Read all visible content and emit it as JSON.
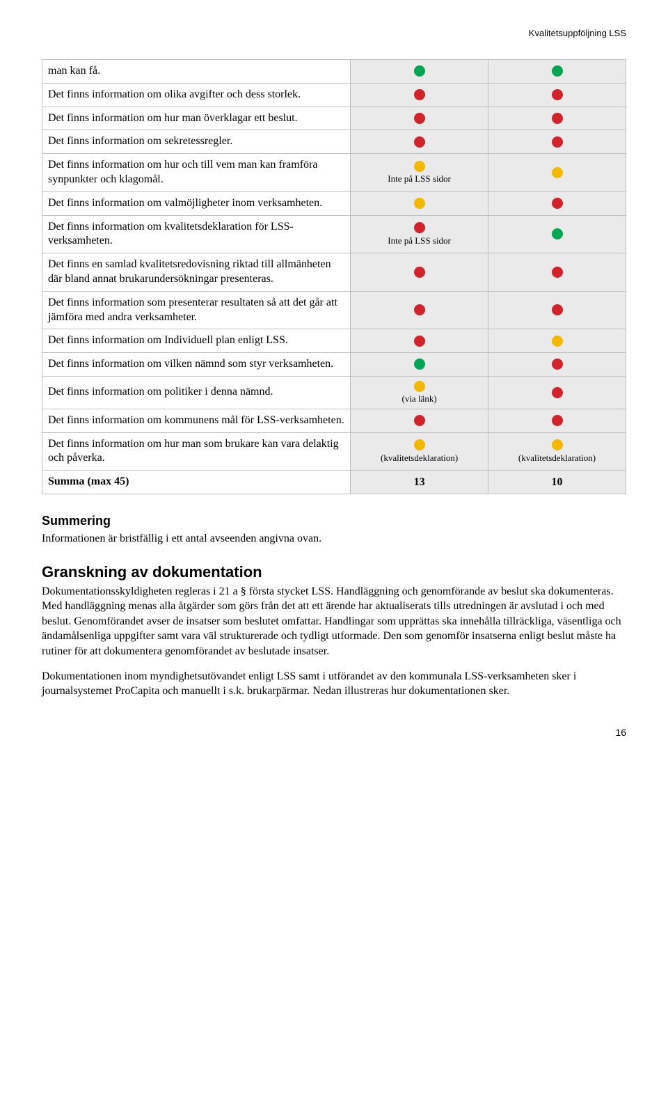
{
  "header": {
    "right": "Kvalitetsuppföljning LSS"
  },
  "colors": {
    "green": "#00a651",
    "red": "#d2232a",
    "yellow": "#f2b900"
  },
  "table": {
    "rows": [
      {
        "label": "man kan få.",
        "c1": {
          "dot": "green"
        },
        "c2": {
          "dot": "green"
        }
      },
      {
        "label": "Det finns information om olika avgifter och dess storlek.",
        "c1": {
          "dot": "red"
        },
        "c2": {
          "dot": "red"
        }
      },
      {
        "label": "Det finns information om hur man överklagar ett beslut.",
        "c1": {
          "dot": "red"
        },
        "c2": {
          "dot": "red"
        }
      },
      {
        "label": "Det finns information om sekretessregler.",
        "c1": {
          "dot": "red"
        },
        "c2": {
          "dot": "red"
        }
      },
      {
        "label": "Det finns information om hur och till vem man kan framföra synpunkter och klagomål.",
        "c1": {
          "dot": "yellow",
          "note": "Inte på LSS sidor"
        },
        "c2": {
          "dot": "yellow"
        }
      },
      {
        "label": "Det finns information om valmöjligheter inom verksamheten.",
        "c1": {
          "dot": "yellow"
        },
        "c2": {
          "dot": "red"
        }
      },
      {
        "label": "Det finns information om kvalitetsdeklaration för LSS-verksamheten.",
        "c1": {
          "dot": "red",
          "note": "Inte på LSS sidor"
        },
        "c2": {
          "dot": "green"
        }
      },
      {
        "label": "Det finns en samlad kvalitetsredovisning riktad till allmänheten där bland annat brukarundersökningar presenteras.",
        "c1": {
          "dot": "red"
        },
        "c2": {
          "dot": "red"
        }
      },
      {
        "label": "Det finns information som presenterar resultaten så att det går att jämföra med andra verksamheter.",
        "c1": {
          "dot": "red"
        },
        "c2": {
          "dot": "red"
        }
      },
      {
        "label": "Det finns information om Individuell plan enligt LSS.",
        "c1": {
          "dot": "red"
        },
        "c2": {
          "dot": "yellow"
        }
      },
      {
        "label": "Det finns information om vilken nämnd som styr verksamheten.",
        "c1": {
          "dot": "green"
        },
        "c2": {
          "dot": "red"
        }
      },
      {
        "label": "Det finns information om politiker i denna nämnd.",
        "c1": {
          "dot": "yellow",
          "note": "(via länk)"
        },
        "c2": {
          "dot": "red"
        }
      },
      {
        "label": "Det finns information om kommunens mål för LSS-verksamheten.",
        "c1": {
          "dot": "red"
        },
        "c2": {
          "dot": "red"
        }
      },
      {
        "label": "Det finns information om hur man som brukare kan vara delaktig och påverka.",
        "c1": {
          "dot": "yellow",
          "note": "(kvalitetsdeklaration)"
        },
        "c2": {
          "dot": "yellow",
          "note": "(kvalitetsdeklaration)"
        }
      }
    ],
    "sum": {
      "label": "Summa (max 45)",
      "c1": "13",
      "c2": "10"
    }
  },
  "sections": {
    "summary_h": "Summering",
    "summary_p": "Informationen är bristfällig i ett antal avseenden angivna ovan.",
    "review_h": "Granskning av dokumentation",
    "review_p1": "Dokumentationsskyldigheten regleras i 21 a § första stycket LSS. Handläggning och genomförande av beslut ska dokumenteras. Med handläggning menas alla åtgärder som görs från det att ett ärende har aktualiserats tills utredningen är avslutad i och med beslut. Genomförandet avser de insatser som beslutet omfattar. Handlingar som upprättas ska innehålla tillräckliga, väsentliga och ändamålsenliga uppgifter samt vara väl strukturerade och tydligt utformade. Den som genomför insatserna enligt beslut måste ha rutiner för att dokumentera genomförandet av beslutade insatser.",
    "review_p2": "Dokumentationen inom myndighetsutövandet enligt LSS samt i utförandet av den kommunala LSS-verksamheten sker i journalsystemet ProCapita och manuellt i s.k. brukarpärmar. Nedan illustreras hur dokumentationen sker."
  },
  "pagenum": "16"
}
